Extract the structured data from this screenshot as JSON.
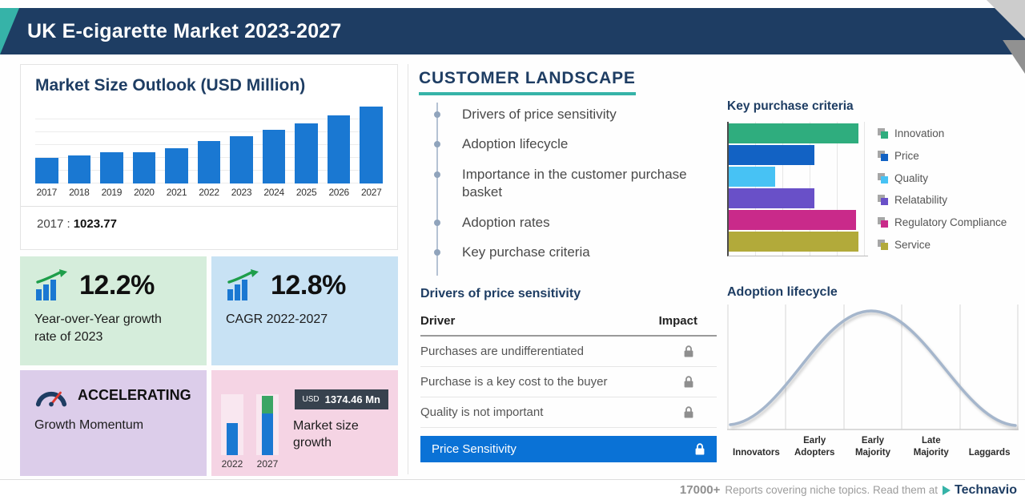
{
  "header": {
    "title": "UK E-cigarette Market 2023-2027"
  },
  "colors": {
    "header_navy": "#1e3d63",
    "teal_accent": "#36b3a8",
    "bar_blue": "#1a78d2",
    "highlight_blue": "#0a72d6"
  },
  "market_size": {
    "title": "Market Size Outlook (USD Million)",
    "base_year_label": "2017 :",
    "base_year_value": "1023.77",
    "cards": {
      "yoy": {
        "value": "12.2%",
        "label": "Year-over-Year growth rate of 2023"
      },
      "cagr": {
        "value": "12.8%",
        "label": "CAGR 2022-2027"
      },
      "momentum": {
        "value": "ACCELERATING",
        "label": "Growth Momentum"
      },
      "size_growth": {
        "currency": "USD",
        "amount": "1374.46 Mn",
        "label": "Market size growth",
        "year_start": "2022",
        "year_end": "2027"
      }
    }
  },
  "customer_landscape": {
    "title": "CUSTOMER LANDSCAPE",
    "items": [
      "Drivers of price sensitivity",
      "Adoption lifecycle",
      "Importance in the customer purchase basket",
      "Adoption rates",
      "Key purchase criteria"
    ],
    "key_purchase": {
      "title": "Key purchase criteria",
      "legend": [
        {
          "label": "Innovation",
          "color": "#2fad7e"
        },
        {
          "label": "Price",
          "color": "#1262c4"
        },
        {
          "label": "Quality",
          "color": "#47c2f4"
        },
        {
          "label": "Relatability",
          "color": "#6950c8"
        },
        {
          "label": "Regulatory Compliance",
          "color": "#c92a8a"
        },
        {
          "label": "Service",
          "color": "#b2aa3a"
        }
      ]
    },
    "price_sensitivity": {
      "title": "Drivers of price sensitivity",
      "columns": {
        "driver": "Driver",
        "impact": "Impact"
      },
      "rows": [
        "Purchases are undifferentiated",
        "Purchase is a key cost to the buyer",
        "Quality is not important"
      ],
      "highlight": "Price Sensitivity"
    },
    "adoption": {
      "title": "Adoption lifecycle",
      "stages": [
        "Innovators",
        "Early Adopters",
        "Early Majority",
        "Late Majority",
        "Laggards"
      ]
    }
  },
  "footer": {
    "count": "17000+",
    "text": "Reports covering niche topics. Read them at",
    "brand": "Technavio"
  },
  "chart_data": [
    {
      "type": "bar",
      "title": "Market Size Outlook (USD Million)",
      "categories": [
        "2017",
        "2018",
        "2019",
        "2020",
        "2021",
        "2022",
        "2023",
        "2024",
        "2025",
        "2026",
        "2027"
      ],
      "values": [
        1023.77,
        1120,
        1235,
        1230,
        1400,
        1663.6,
        1866.5,
        2105,
        2374,
        2678,
        3038
      ],
      "note": "2017 value labeled 1023.77; later values estimated from bar heights, 12.2% YoY 2023, 12.8% CAGR 2022-2027, absolute growth USD 1374.46 Mn",
      "xlabel": "Year",
      "ylabel": "USD Million",
      "ylim": [
        0,
        3100
      ],
      "grid": true
    },
    {
      "type": "bar",
      "orientation": "horizontal",
      "title": "Key purchase criteria",
      "categories": [
        "Innovation",
        "Price",
        "Quality",
        "Relatability",
        "Regulatory Compliance",
        "Service"
      ],
      "values": [
        100,
        66,
        36,
        66,
        98,
        100
      ],
      "note": "relative bar lengths, no numeric axis shown",
      "legend_position": "right",
      "grid": true
    },
    {
      "type": "line",
      "title": "Adoption lifecycle",
      "categories": [
        "Innovators",
        "Early Adopters",
        "Early Majority",
        "Late Majority",
        "Laggards"
      ],
      "values": [
        8,
        45,
        100,
        45,
        8
      ],
      "note": "bell curve, relative heights peaking at Early Majority",
      "grid": true
    }
  ]
}
